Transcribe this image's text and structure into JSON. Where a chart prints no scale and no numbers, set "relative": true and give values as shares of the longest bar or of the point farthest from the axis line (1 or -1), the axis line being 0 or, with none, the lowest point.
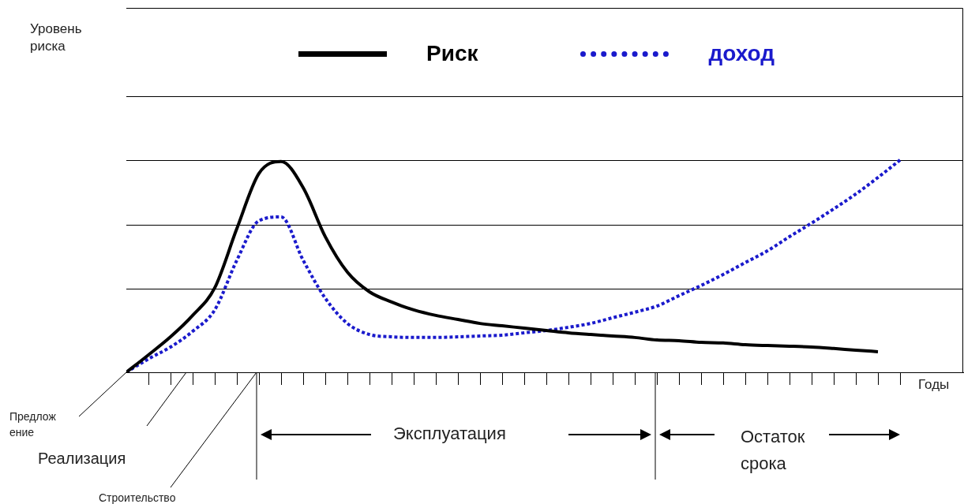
{
  "chart_data": {
    "type": "line",
    "relative": true,
    "xlabel": "Годы",
    "legend": "top",
    "ref_lines": [
      {
        "axis": "y",
        "value": 0.394,
        "color": "#000000"
      },
      {
        "axis": "y",
        "value": 0.695,
        "color": "#000000"
      },
      {
        "axis": "y",
        "value": 1,
        "color": "#000000"
      },
      {
        "axis": "y",
        "value": 1.301,
        "color": "#000000"
      }
    ],
    "marker": "none",
    "categories": [
      null,
      null,
      null,
      null,
      null,
      null,
      null,
      null,
      null,
      null,
      null,
      null,
      null,
      null,
      null,
      null,
      null,
      null,
      null,
      null,
      null,
      null,
      null,
      null,
      null,
      null,
      null,
      null,
      null,
      null,
      null,
      null,
      null,
      null,
      null,
      null
    ],
    "series": [
      {
        "name": "Риск",
        "color": "#000000",
        "line_style": "solid",
        "values": [
          0,
          0.082,
          0.167,
          0.268,
          0.398,
          0.677,
          0.937,
          0.993,
          0.87,
          0.639,
          0.472,
          0.379,
          0.331,
          0.294,
          0.268,
          0.249,
          0.23,
          0.219,
          0.208,
          0.197,
          0.186,
          0.178,
          0.171,
          0.164,
          0.152,
          0.149,
          0.141,
          0.138,
          0.13,
          0.126,
          0.123,
          0.119,
          0.112,
          0.104,
          0.097,
          null
        ]
      },
      {
        "name": "доход",
        "color": "#1a1acc",
        "line_style": "dotted",
        "values": [
          0,
          0.063,
          0.119,
          0.193,
          0.294,
          0.528,
          0.714,
          0.732,
          0.528,
          0.349,
          0.23,
          0.178,
          0.167,
          0.164,
          0.164,
          0.167,
          0.171,
          0.175,
          0.186,
          0.197,
          0.212,
          0.23,
          0.257,
          0.283,
          0.312,
          0.361,
          0.409,
          0.461,
          0.517,
          0.572,
          0.639,
          0.703,
          0.77,
          0.84,
          0.918,
          1
        ]
      }
    ],
    "annotations": [
      "Уровень риска",
      "Предложение",
      "Реализация",
      "Строительство",
      "Эксплуатация",
      "Остаток срока"
    ]
  }
}
